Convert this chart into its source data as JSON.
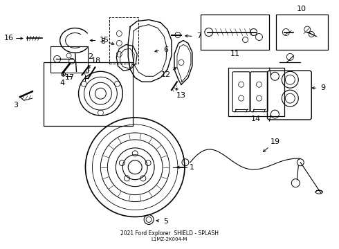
{
  "title": "2021 Ford Explorer  SHIELD - SPLASH",
  "part_number": "L1MZ-2K004-M",
  "bg_color": "#ffffff",
  "line_color": "#000000",
  "fig_width": 4.9,
  "fig_height": 3.6,
  "dpi": 100
}
